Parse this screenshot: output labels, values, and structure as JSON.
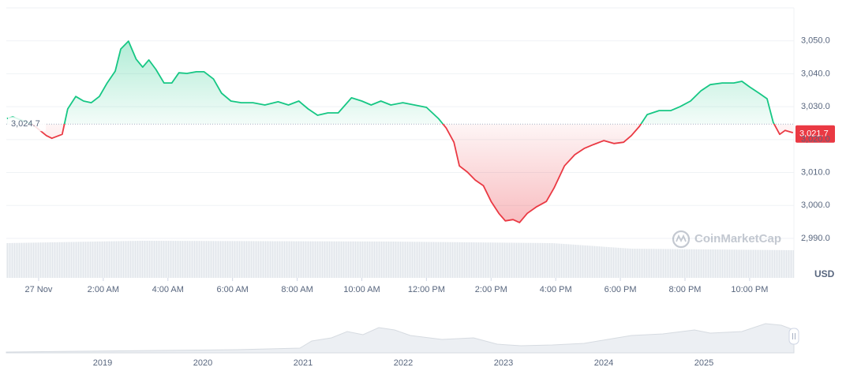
{
  "chart_data": {
    "type": "line",
    "currency": "USD",
    "watermark": "CoinMarketCap",
    "up_color": "#16c784",
    "down_color": "#ea3943",
    "reference": {
      "value": 3024.7,
      "label": "3,024.7"
    },
    "last_price": {
      "value": 3021.7,
      "label": "3,021.7"
    },
    "xlim": [
      -1,
      23.37
    ],
    "xticks": [
      {
        "value": 0,
        "label": "27 Nov"
      },
      {
        "value": 2,
        "label": "2:00 AM"
      },
      {
        "value": 4,
        "label": "4:00 AM"
      },
      {
        "value": 6,
        "label": "6:00 AM"
      },
      {
        "value": 8,
        "label": "8:00 AM"
      },
      {
        "value": 10,
        "label": "10:00 AM"
      },
      {
        "value": 12,
        "label": "12:00 PM"
      },
      {
        "value": 14,
        "label": "2:00 PM"
      },
      {
        "value": 16,
        "label": "4:00 PM"
      },
      {
        "value": 18,
        "label": "6:00 PM"
      },
      {
        "value": 20,
        "label": "8:00 PM"
      },
      {
        "value": 22,
        "label": "10:00 PM"
      }
    ],
    "ylim": [
      2978,
      3060
    ],
    "yticks": [
      {
        "value": 2990,
        "label": "2,990.0"
      },
      {
        "value": 3000,
        "label": "3,000.0"
      },
      {
        "value": 3010,
        "label": "3,010.0"
      },
      {
        "value": 3020,
        "label": "3,020.0"
      },
      {
        "value": 3030,
        "label": "3,030.0"
      },
      {
        "value": 3040,
        "label": "3,040.0"
      },
      {
        "value": 3050,
        "label": "3,050.0"
      }
    ],
    "grid": true,
    "x": [
      -0.98,
      -0.8,
      -0.2,
      0.24,
      0.41,
      0.73,
      0.9,
      1.15,
      1.39,
      1.63,
      1.88,
      2.12,
      2.37,
      2.54,
      2.78,
      3.02,
      3.22,
      3.41,
      3.63,
      3.88,
      4.12,
      4.34,
      4.59,
      4.88,
      5.12,
      5.41,
      5.66,
      5.95,
      6.27,
      6.63,
      7.0,
      7.41,
      7.73,
      8.05,
      8.34,
      8.63,
      8.95,
      9.27,
      9.68,
      10.0,
      10.29,
      10.59,
      10.9,
      11.27,
      11.63,
      12.0,
      12.37,
      12.61,
      12.85,
      13.02,
      13.27,
      13.51,
      13.76,
      14.0,
      14.24,
      14.44,
      14.68,
      14.88,
      15.12,
      15.41,
      15.71,
      15.95,
      16.27,
      16.59,
      16.88,
      17.17,
      17.49,
      17.8,
      18.1,
      18.34,
      18.59,
      18.83,
      19.2,
      19.56,
      19.85,
      20.17,
      20.49,
      20.78,
      21.15,
      21.51,
      21.76,
      22.0,
      22.29,
      22.54,
      22.73,
      22.93,
      23.1,
      23.34
    ],
    "values": [
      3026.4,
      3026.9,
      3024.7,
      3021.2,
      3020.4,
      3021.6,
      3029.3,
      3033.1,
      3031.7,
      3031.2,
      3033.1,
      3037.2,
      3040.8,
      3047.5,
      3049.9,
      3044.4,
      3042.0,
      3044.2,
      3041.3,
      3037.2,
      3037.2,
      3040.3,
      3040.1,
      3040.6,
      3040.6,
      3038.4,
      3034.1,
      3031.7,
      3031.2,
      3031.2,
      3030.5,
      3031.5,
      3030.5,
      3031.7,
      3029.3,
      3027.4,
      3028.1,
      3028.1,
      3032.7,
      3031.7,
      3030.5,
      3031.7,
      3030.5,
      3031.2,
      3030.5,
      3029.8,
      3026.4,
      3023.5,
      3019.2,
      3012.0,
      3010.1,
      3007.7,
      3006.0,
      3001.2,
      2997.6,
      2995.3,
      2995.7,
      2994.8,
      2997.6,
      2999.6,
      3001.2,
      3005.3,
      3012.0,
      3015.4,
      3017.3,
      3018.5,
      3019.7,
      3018.8,
      3019.2,
      3021.2,
      3024.0,
      3027.6,
      3028.8,
      3028.8,
      3030.0,
      3031.7,
      3034.8,
      3036.7,
      3037.2,
      3037.2,
      3037.7,
      3036.0,
      3034.1,
      3032.4,
      3025.2,
      3021.6,
      3022.8,
      3022.1
    ]
  },
  "navigator": {
    "labels": [
      "2019",
      "2020",
      "2021",
      "2022",
      "2023",
      "2024",
      "2025"
    ]
  }
}
